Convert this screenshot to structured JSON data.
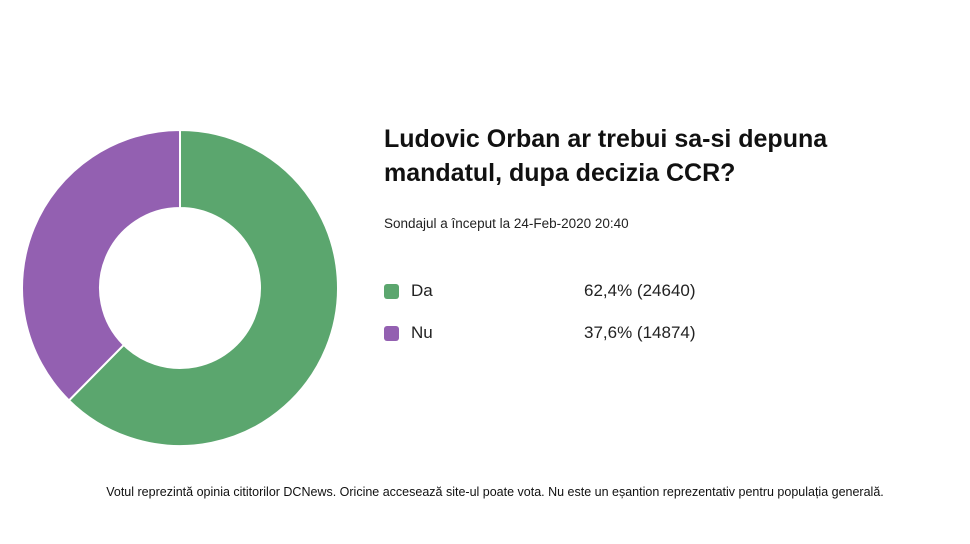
{
  "chart_data": {
    "type": "pie",
    "donut": true,
    "title": "Ludovic Orban ar trebui sa-si depuna mandatul, dupa decizia CCR?",
    "categories": [
      "Da",
      "Nu"
    ],
    "values": [
      62.4,
      37.6
    ],
    "counts": [
      24640,
      14874
    ],
    "colors": [
      "#5ba66e",
      "#9360b1"
    ],
    "legend_position": "right"
  },
  "poll": {
    "started": "Sondajul a început la 24-Feb-2020 20:40",
    "rows": [
      {
        "label": "Da",
        "value": "62,4% (24640)"
      },
      {
        "label": "Nu",
        "value": "37,6% (14874)"
      }
    ]
  },
  "footer": "Votul reprezintă opinia cititorilor DCNews. Oricine accesează site-ul poate vota. Nu este un eșantion reprezentativ pentru populația generală."
}
